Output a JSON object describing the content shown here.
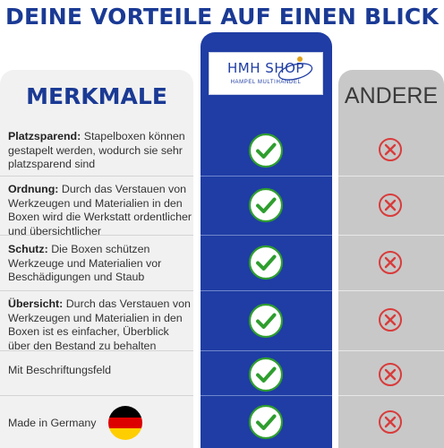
{
  "headline": "DEINE VORTEILE AUF EINEN BLICK",
  "columns": {
    "features_header": "MERKMALE",
    "brand": {
      "name": "HMH SHOP",
      "tagline": "HAMPEL MULTIHANDEL"
    },
    "others_header": "ANDERE"
  },
  "rows": [
    {
      "label": "Platzsparend:",
      "text": "Stapelboxen können gestapelt werden, wodurch sie sehr platzsparend sind",
      "brand": "check-icon",
      "others": "cross-icon"
    },
    {
      "label": "Ordnung:",
      "text": "Durch das Verstauen von Werkzeugen und Materialien in den Boxen wird die Werkstatt ordentlicher und übersichtlicher",
      "brand": "check-icon",
      "others": "cross-icon"
    },
    {
      "label": "Schutz:",
      "text": "Die Boxen schützen Werkzeuge und Materialien vor Beschädigungen und Staub",
      "brand": "check-icon",
      "others": "cross-icon"
    },
    {
      "label": "Übersicht:",
      "text": "Durch das Verstauen von Werkzeugen und Materialien in den Boxen ist es einfacher, Überblick über den Bestand zu behalten",
      "brand": "check-icon",
      "others": "cross-icon"
    },
    {
      "label": "",
      "text": "Mit Beschriftungsfeld",
      "brand": "check-icon",
      "others": "cross-icon"
    },
    {
      "label": "",
      "text": "Made in Germany",
      "brand": "check-icon",
      "others": "cross-icon",
      "extra_icon": "germany-flag-icon"
    }
  ],
  "colors": {
    "brand_blue": "#1f3da4",
    "headline_blue": "#1a3a94",
    "check_green": "#2e9e2e",
    "cross_red": "#d93b3b",
    "flag": [
      "#000000",
      "#dd0000",
      "#ffce00"
    ]
  }
}
